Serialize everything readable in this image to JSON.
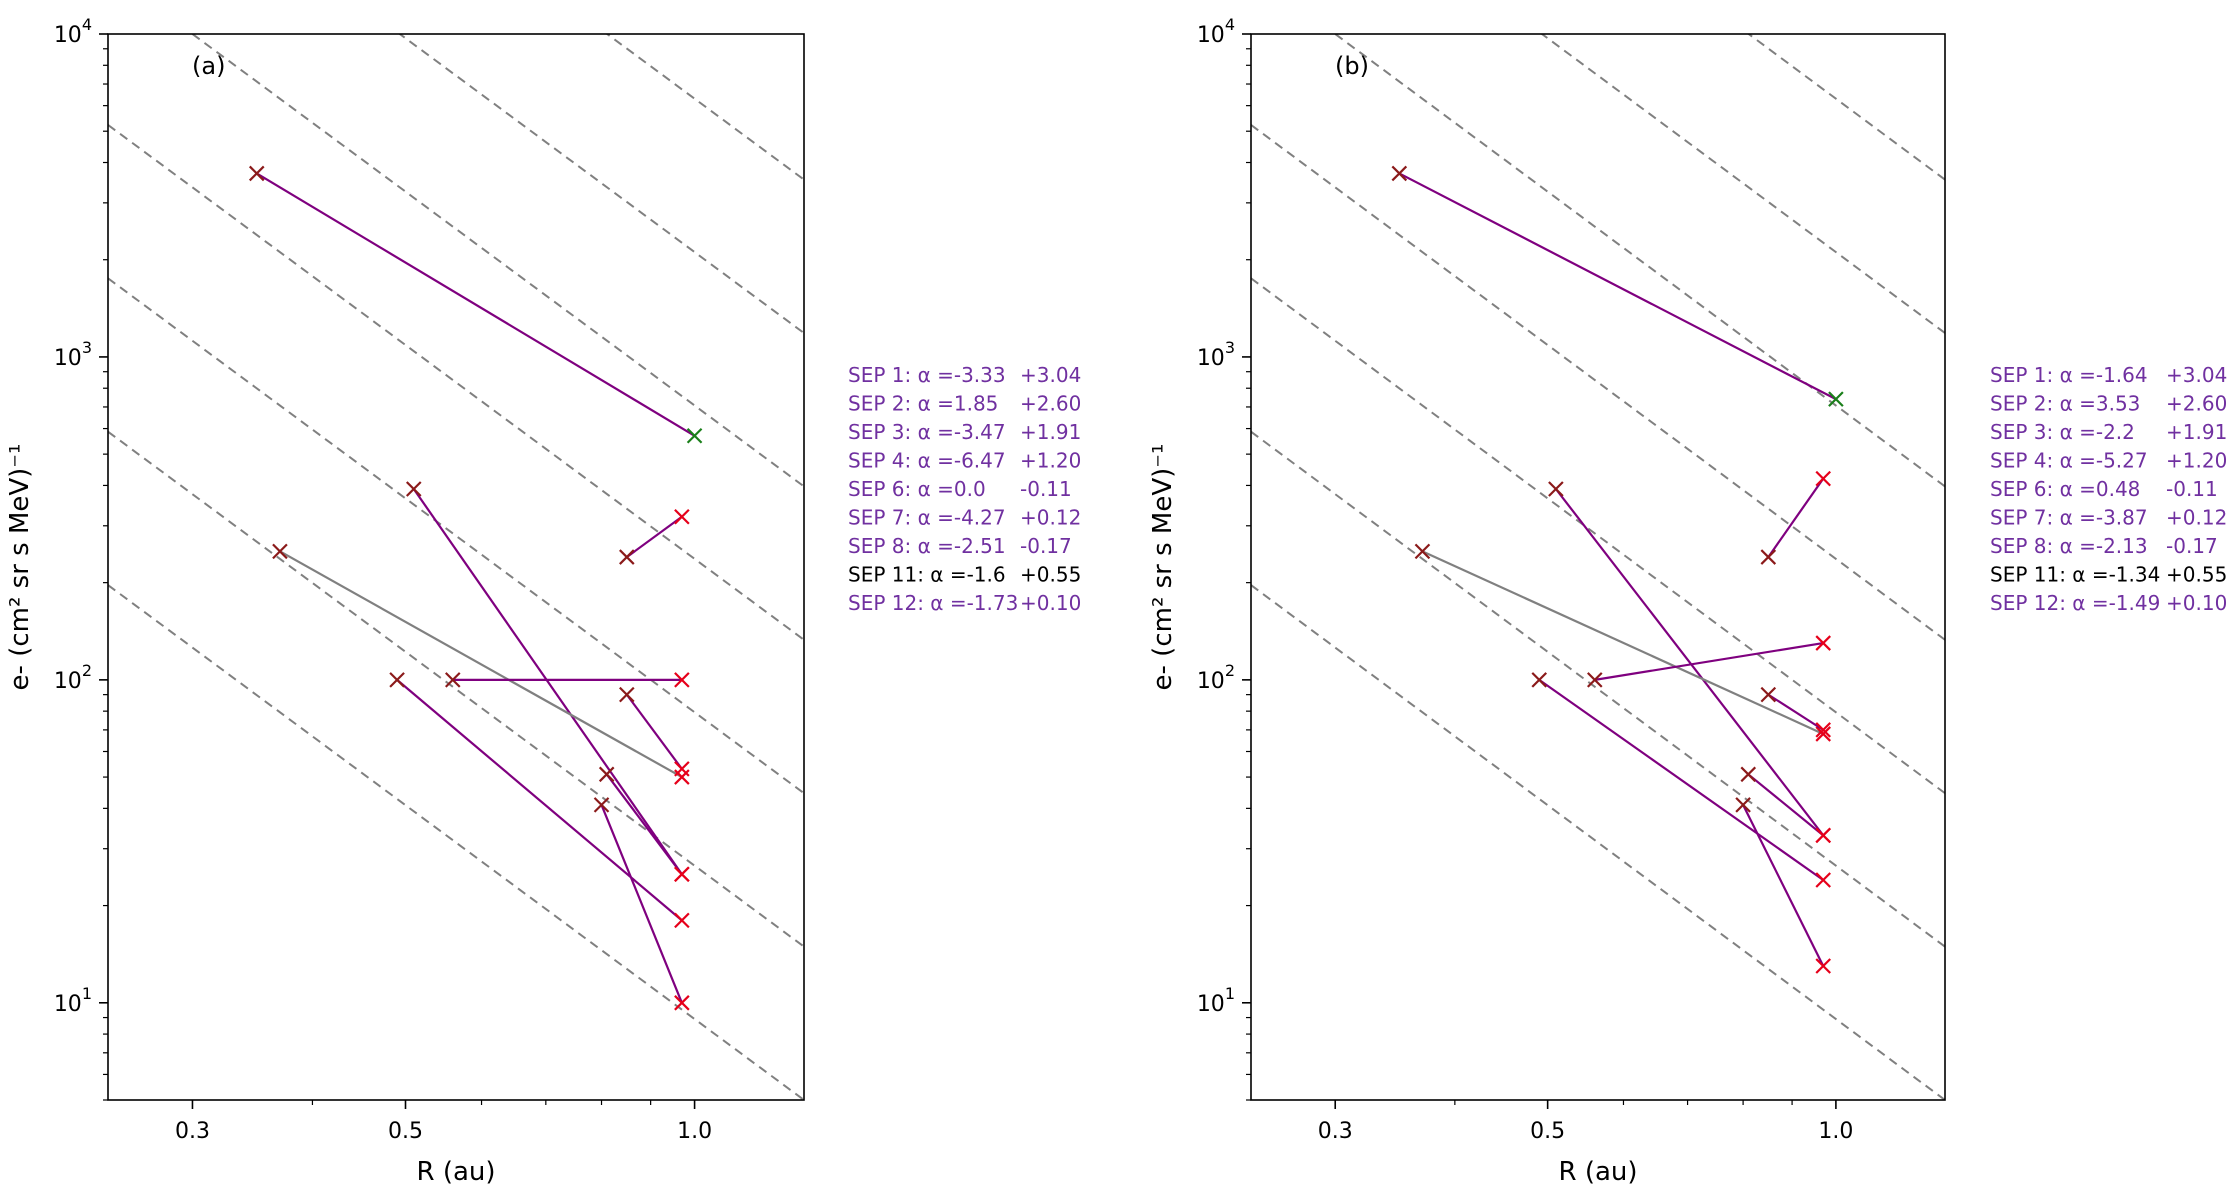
{
  "colors": {
    "purple": "#7f007f",
    "gray": "#808080",
    "marker_red": "#e6001a",
    "marker_darkred": "#8b1a1a",
    "marker_green": "#1a7f1a",
    "guide": "#808080",
    "text_black": "#000000",
    "text_purple": "#7030a0"
  },
  "chart_data": [
    {
      "type": "scatter",
      "panel_label": "(a)",
      "xlabel": "R (au)",
      "ylabel": "e- (cm² sr s MeV)⁻¹",
      "xscale": "log",
      "yscale": "log",
      "xlim": [
        0.245,
        1.3
      ],
      "ylim": [
        5,
        10000
      ],
      "xticks": [
        {
          "value": 0.3,
          "label": "0.3"
        },
        {
          "value": 0.5,
          "label": "0.5"
        },
        {
          "value": 1.0,
          "label": "1.0"
        }
      ],
      "yticks": [
        {
          "value": 10,
          "base": "10",
          "exp": "1"
        },
        {
          "value": 100,
          "base": "10",
          "exp": "2"
        },
        {
          "value": 1000,
          "base": "10",
          "exp": "3"
        },
        {
          "value": 10000,
          "base": "10",
          "exp": "4"
        }
      ],
      "guide_lines": {
        "style": "dashed",
        "slope": -2.2,
        "count": 9
      },
      "segments": [
        {
          "x": [
            0.35,
            1.0
          ],
          "y": [
            3700,
            570
          ],
          "color": "purple",
          "markers": [
            "darkred",
            "green"
          ]
        },
        {
          "x": [
            0.85,
            0.97
          ],
          "y": [
            240,
            320
          ],
          "color": "purple",
          "markers": [
            "darkred",
            "red"
          ]
        },
        {
          "x": [
            0.51,
            0.97
          ],
          "y": [
            390,
            25
          ],
          "color": "purple",
          "markers": [
            "darkred",
            "red"
          ]
        },
        {
          "x": [
            0.37,
            0.97
          ],
          "y": [
            250,
            50
          ],
          "color": "gray",
          "markers": [
            "darkred",
            "red"
          ]
        },
        {
          "x": [
            0.56,
            0.97
          ],
          "y": [
            100,
            100
          ],
          "color": "purple",
          "markers": [
            "darkred",
            "red"
          ]
        },
        {
          "x": [
            0.49,
            0.97
          ],
          "y": [
            100,
            18
          ],
          "color": "purple",
          "markers": [
            "darkred",
            "red"
          ]
        },
        {
          "x": [
            0.85,
            0.97
          ],
          "y": [
            90,
            53
          ],
          "color": "purple",
          "markers": [
            "darkred",
            "red"
          ]
        },
        {
          "x": [
            0.81,
            0.97
          ],
          "y": [
            51,
            25
          ],
          "color": "purple",
          "markers": [
            "darkred",
            "red"
          ]
        },
        {
          "x": [
            0.8,
            0.97
          ],
          "y": [
            41,
            10
          ],
          "color": "purple",
          "markers": [
            "darkred",
            "red"
          ]
        }
      ],
      "legend": [
        {
          "label": "SEP 1: α =-3.33",
          "value": "+3.04",
          "color": "purple"
        },
        {
          "label": "SEP 2: α =1.85",
          "value": "+2.60",
          "color": "purple"
        },
        {
          "label": "SEP 3: α =-3.47",
          "value": "+1.91",
          "color": "purple"
        },
        {
          "label": "SEP 4: α =-6.47",
          "value": "+1.20",
          "color": "purple"
        },
        {
          "label": "SEP 6: α =0.0",
          "value": "-0.11",
          "color": "purple"
        },
        {
          "label": "SEP 7: α =-4.27",
          "value": "+0.12",
          "color": "purple"
        },
        {
          "label": "SEP 8: α =-2.51",
          "value": "-0.17",
          "color": "purple"
        },
        {
          "label": "SEP 11: α =-1.6",
          "value": "+0.55",
          "color": "black"
        },
        {
          "label": "SEP 12: α =-1.73",
          "value": "+0.10",
          "color": "purple"
        }
      ]
    },
    {
      "type": "scatter",
      "panel_label": "(b)",
      "xlabel": "R (au)",
      "ylabel": "e- (cm² sr s MeV)⁻¹",
      "xscale": "log",
      "yscale": "log",
      "xlim": [
        0.245,
        1.3
      ],
      "ylim": [
        5,
        10000
      ],
      "xticks": [
        {
          "value": 0.3,
          "label": "0.3"
        },
        {
          "value": 0.5,
          "label": "0.5"
        },
        {
          "value": 1.0,
          "label": "1.0"
        }
      ],
      "yticks": [
        {
          "value": 10,
          "base": "10",
          "exp": "1"
        },
        {
          "value": 100,
          "base": "10",
          "exp": "2"
        },
        {
          "value": 1000,
          "base": "10",
          "exp": "3"
        },
        {
          "value": 10000,
          "base": "10",
          "exp": "4"
        }
      ],
      "guide_lines": {
        "style": "dashed",
        "slope": -2.2,
        "count": 9
      },
      "segments": [
        {
          "x": [
            0.35,
            1.0
          ],
          "y": [
            3700,
            740
          ],
          "color": "purple",
          "markers": [
            "darkred",
            "green"
          ]
        },
        {
          "x": [
            0.85,
            0.97
          ],
          "y": [
            240,
            420
          ],
          "color": "purple",
          "markers": [
            "darkred",
            "red"
          ]
        },
        {
          "x": [
            0.51,
            0.97
          ],
          "y": [
            390,
            33
          ],
          "color": "purple",
          "markers": [
            "darkred",
            "red"
          ]
        },
        {
          "x": [
            0.37,
            0.97
          ],
          "y": [
            250,
            68
          ],
          "color": "gray",
          "markers": [
            "darkred",
            "red"
          ]
        },
        {
          "x": [
            0.56,
            0.97
          ],
          "y": [
            100,
            130
          ],
          "color": "purple",
          "markers": [
            "darkred",
            "red"
          ]
        },
        {
          "x": [
            0.49,
            0.97
          ],
          "y": [
            100,
            24
          ],
          "color": "purple",
          "markers": [
            "darkred",
            "red"
          ]
        },
        {
          "x": [
            0.85,
            0.97
          ],
          "y": [
            90,
            70
          ],
          "color": "purple",
          "markers": [
            "darkred",
            "red"
          ]
        },
        {
          "x": [
            0.81,
            0.97
          ],
          "y": [
            51,
            33
          ],
          "color": "purple",
          "markers": [
            "darkred",
            "red"
          ]
        },
        {
          "x": [
            0.8,
            0.97
          ],
          "y": [
            41,
            13
          ],
          "color": "purple",
          "markers": [
            "darkred",
            "red"
          ]
        }
      ],
      "legend": [
        {
          "label": "SEP 1: α =-1.64",
          "value": "+3.04",
          "color": "purple"
        },
        {
          "label": "SEP 2: α =3.53",
          "value": "+2.60",
          "color": "purple"
        },
        {
          "label": "SEP 3: α =-2.2",
          "value": "+1.91",
          "color": "purple"
        },
        {
          "label": "SEP 4: α =-5.27",
          "value": "+1.20",
          "color": "purple"
        },
        {
          "label": "SEP 6: α =0.48",
          "value": "-0.11",
          "color": "purple"
        },
        {
          "label": "SEP 7: α =-3.87",
          "value": "+0.12",
          "color": "purple"
        },
        {
          "label": "SEP 8: α =-2.13",
          "value": "-0.17",
          "color": "purple"
        },
        {
          "label": "SEP 11: α =-1.34",
          "value": "+0.55",
          "color": "black"
        },
        {
          "label": "SEP 12: α =-1.49",
          "value": "+0.10",
          "color": "purple"
        }
      ]
    }
  ]
}
